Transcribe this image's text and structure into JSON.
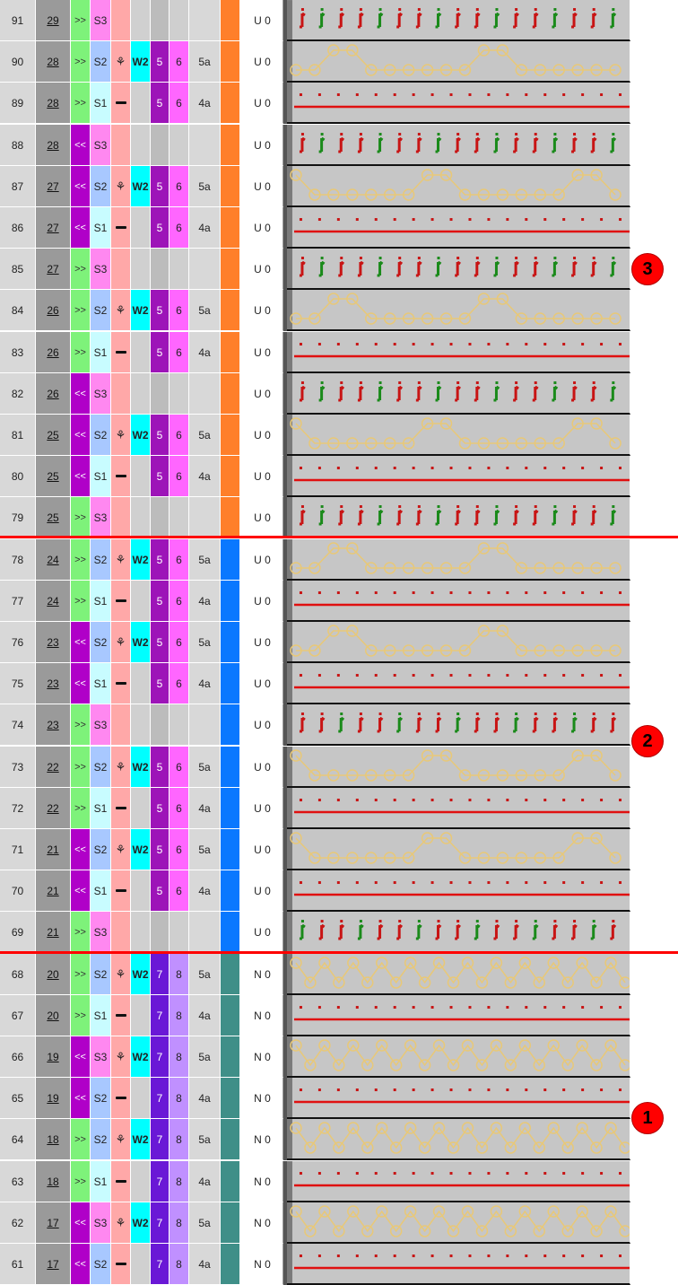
{
  "colors": {
    "dir_right": "#7ef27a",
    "dir_left": "#b000c8",
    "S1": "#c8fcff",
    "S2": "#a8c8ff",
    "S3": "#ff88f0",
    "w2": "#00ffff",
    "v1_U": "#9d14b8",
    "v2_U": "#ff66ff",
    "v1_N": "#6a18d6",
    "v2_N": "#c090ff",
    "section3": "#ff7f2a",
    "section2": "#0a78ff",
    "section1": "#3f8f88",
    "stitch_red": "#c81414",
    "stitch_green": "#1a8a1a",
    "tuck_yellow": "#e8c878",
    "line_red": "#e01010"
  },
  "feed_icons": {
    "mark": "dash",
    "yarn": "yarn-carrier-icon"
  },
  "markers": [
    "3",
    "2",
    "1"
  ],
  "rows": [
    {
      "num": "91",
      "pass": "29",
      "dir": ">>",
      "sys": "S3",
      "feed": "",
      "w": "",
      "v1": "",
      "v2": "",
      "cam": "",
      "section": 3,
      "u": "U 0",
      "pattern": "knit"
    },
    {
      "num": "90",
      "pass": "28",
      "dir": ">>",
      "sys": "S2",
      "feed": "yarn",
      "w": "W2",
      "v1": "5",
      "v2": "6",
      "cam": "5a",
      "section": 3,
      "u": "U 0",
      "pattern": "tuckA"
    },
    {
      "num": "89",
      "pass": "28",
      "dir": ">>",
      "sys": "S1",
      "feed": "mark",
      "w": "",
      "v1": "5",
      "v2": "6",
      "cam": "4a",
      "section": 3,
      "u": "U 0",
      "pattern": "line"
    },
    {
      "num": "88",
      "pass": "28",
      "dir": "<<",
      "sys": "S3",
      "feed": "",
      "w": "",
      "v1": "",
      "v2": "",
      "cam": "",
      "section": 3,
      "u": "U 0",
      "pattern": "knit"
    },
    {
      "num": "87",
      "pass": "27",
      "dir": "<<",
      "sys": "S2",
      "feed": "yarn",
      "w": "W2",
      "v1": "5",
      "v2": "6",
      "cam": "5a",
      "section": 3,
      "u": "U 0",
      "pattern": "tuckB"
    },
    {
      "num": "86",
      "pass": "27",
      "dir": "<<",
      "sys": "S1",
      "feed": "mark",
      "w": "",
      "v1": "5",
      "v2": "6",
      "cam": "4a",
      "section": 3,
      "u": "U 0",
      "pattern": "line"
    },
    {
      "num": "85",
      "pass": "27",
      "dir": ">>",
      "sys": "S3",
      "feed": "",
      "w": "",
      "v1": "",
      "v2": "",
      "cam": "",
      "section": 3,
      "u": "U 0",
      "pattern": "knit"
    },
    {
      "num": "84",
      "pass": "26",
      "dir": ">>",
      "sys": "S2",
      "feed": "yarn",
      "w": "W2",
      "v1": "5",
      "v2": "6",
      "cam": "5a",
      "section": 3,
      "u": "U 0",
      "pattern": "tuckA"
    },
    {
      "num": "83",
      "pass": "26",
      "dir": ">>",
      "sys": "S1",
      "feed": "mark",
      "w": "",
      "v1": "5",
      "v2": "6",
      "cam": "4a",
      "section": 3,
      "u": "U 0",
      "pattern": "line"
    },
    {
      "num": "82",
      "pass": "26",
      "dir": "<<",
      "sys": "S3",
      "feed": "",
      "w": "",
      "v1": "",
      "v2": "",
      "cam": "",
      "section": 3,
      "u": "U 0",
      "pattern": "knit"
    },
    {
      "num": "81",
      "pass": "25",
      "dir": "<<",
      "sys": "S2",
      "feed": "yarn",
      "w": "W2",
      "v1": "5",
      "v2": "6",
      "cam": "5a",
      "section": 3,
      "u": "U 0",
      "pattern": "tuckB"
    },
    {
      "num": "80",
      "pass": "25",
      "dir": "<<",
      "sys": "S1",
      "feed": "mark",
      "w": "",
      "v1": "5",
      "v2": "6",
      "cam": "4a",
      "section": 3,
      "u": "U 0",
      "pattern": "line"
    },
    {
      "num": "79",
      "pass": "25",
      "dir": ">>",
      "sys": "S3",
      "feed": "",
      "w": "",
      "v1": "",
      "v2": "",
      "cam": "",
      "section": 3,
      "u": "U 0",
      "pattern": "knit"
    },
    {
      "num": "78",
      "pass": "24",
      "dir": ">>",
      "sys": "S2",
      "feed": "yarn",
      "w": "W2",
      "v1": "5",
      "v2": "6",
      "cam": "5a",
      "section": 2,
      "u": "U 0",
      "pattern": "tuckA"
    },
    {
      "num": "77",
      "pass": "24",
      "dir": ">>",
      "sys": "S1",
      "feed": "mark",
      "w": "",
      "v1": "5",
      "v2": "6",
      "cam": "4a",
      "section": 2,
      "u": "U 0",
      "pattern": "line"
    },
    {
      "num": "76",
      "pass": "23",
      "dir": "<<",
      "sys": "S2",
      "feed": "yarn",
      "w": "W2",
      "v1": "5",
      "v2": "6",
      "cam": "5a",
      "section": 2,
      "u": "U 0",
      "pattern": "tuckA"
    },
    {
      "num": "75",
      "pass": "23",
      "dir": "<<",
      "sys": "S1",
      "feed": "mark",
      "w": "",
      "v1": "5",
      "v2": "6",
      "cam": "4a",
      "section": 2,
      "u": "U 0",
      "pattern": "line"
    },
    {
      "num": "74",
      "pass": "23",
      "dir": ">>",
      "sys": "S3",
      "feed": "",
      "w": "",
      "v1": "",
      "v2": "",
      "cam": "",
      "section": 2,
      "u": "U 0",
      "pattern": "knit"
    },
    {
      "num": "73",
      "pass": "22",
      "dir": ">>",
      "sys": "S2",
      "feed": "yarn",
      "w": "W2",
      "v1": "5",
      "v2": "6",
      "cam": "5a",
      "section": 2,
      "u": "U 0",
      "pattern": "tuckB"
    },
    {
      "num": "72",
      "pass": "22",
      "dir": ">>",
      "sys": "S1",
      "feed": "mark",
      "w": "",
      "v1": "5",
      "v2": "6",
      "cam": "4a",
      "section": 2,
      "u": "U 0",
      "pattern": "line"
    },
    {
      "num": "71",
      "pass": "21",
      "dir": "<<",
      "sys": "S2",
      "feed": "yarn",
      "w": "W2",
      "v1": "5",
      "v2": "6",
      "cam": "5a",
      "section": 2,
      "u": "U 0",
      "pattern": "tuckB"
    },
    {
      "num": "70",
      "pass": "21",
      "dir": "<<",
      "sys": "S1",
      "feed": "mark",
      "w": "",
      "v1": "5",
      "v2": "6",
      "cam": "4a",
      "section": 2,
      "u": "U 0",
      "pattern": "line"
    },
    {
      "num": "69",
      "pass": "21",
      "dir": ">>",
      "sys": "S3",
      "feed": "",
      "w": "",
      "v1": "",
      "v2": "",
      "cam": "",
      "section": 2,
      "u": "U 0",
      "pattern": "knit"
    },
    {
      "num": "68",
      "pass": "20",
      "dir": ">>",
      "sys": "S2",
      "feed": "yarn",
      "w": "W2",
      "v1": "7",
      "v2": "8",
      "cam": "5a",
      "section": 1,
      "u": "N 0",
      "pattern": "tuckDense"
    },
    {
      "num": "67",
      "pass": "20",
      "dir": ">>",
      "sys": "S1",
      "feed": "mark",
      "w": "",
      "v1": "7",
      "v2": "8",
      "cam": "4a",
      "section": 1,
      "u": "N 0",
      "pattern": "line"
    },
    {
      "num": "66",
      "pass": "19",
      "dir": "<<",
      "sys": "S3",
      "feed": "yarn",
      "w": "W2",
      "v1": "7",
      "v2": "8",
      "cam": "5a",
      "section": 1,
      "u": "N 0",
      "pattern": "tuckDense"
    },
    {
      "num": "65",
      "pass": "19",
      "dir": "<<",
      "sys": "S2",
      "feed": "mark",
      "w": "",
      "v1": "7",
      "v2": "8",
      "cam": "4a",
      "section": 1,
      "u": "N 0",
      "pattern": "line"
    },
    {
      "num": "64",
      "pass": "18",
      "dir": ">>",
      "sys": "S2",
      "feed": "yarn",
      "w": "W2",
      "v1": "7",
      "v2": "8",
      "cam": "5a",
      "section": 1,
      "u": "N 0",
      "pattern": "tuckDense"
    },
    {
      "num": "63",
      "pass": "18",
      "dir": ">>",
      "sys": "S1",
      "feed": "mark",
      "w": "",
      "v1": "7",
      "v2": "8",
      "cam": "4a",
      "section": 1,
      "u": "N 0",
      "pattern": "line"
    },
    {
      "num": "62",
      "pass": "17",
      "dir": "<<",
      "sys": "S3",
      "feed": "yarn",
      "w": "W2",
      "v1": "7",
      "v2": "8",
      "cam": "5a",
      "section": 1,
      "u": "N 0",
      "pattern": "tuckDense"
    },
    {
      "num": "61",
      "pass": "17",
      "dir": "<<",
      "sys": "S2",
      "feed": "mark",
      "w": "",
      "v1": "7",
      "v2": "8",
      "cam": "4a",
      "section": 1,
      "u": "N 0",
      "pattern": "line"
    }
  ]
}
